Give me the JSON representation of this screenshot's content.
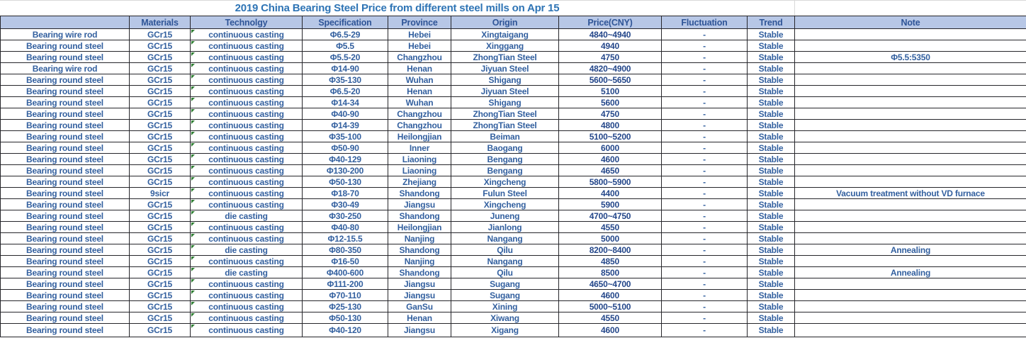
{
  "title": "2019 China Bearing Steel Price from different steel mills on Apr 15",
  "colors": {
    "header_bg": "#b7c7e6",
    "header_text": "#2f5597",
    "body_text": "#33609f",
    "price_text": "#24478a",
    "border": "#26262b",
    "title_text": "#2e74b5",
    "error_indicator_green": "#2e7d32"
  },
  "table": {
    "columns": [
      "",
      "Materials",
      "Technolgy",
      "Specification",
      "Province",
      "Origin",
      "Price(CNY)",
      "Fluctuation",
      "Trend",
      "Note"
    ],
    "column_keys": [
      "product",
      "materials",
      "technology",
      "specification",
      "province",
      "origin",
      "price",
      "fluctuation",
      "trend",
      "note"
    ],
    "rows": [
      [
        "Bearing wire rod",
        "GCr15",
        "continuous casting",
        "Φ6.5-29",
        "Hebei",
        "Xingtaigang",
        "4840~4940",
        "-",
        "Stable",
        ""
      ],
      [
        "Bearing round steel",
        "GCr15",
        "continuous casting",
        "Φ5.5",
        "Hebei",
        "Xinggang",
        "4940",
        "-",
        "Stable",
        ""
      ],
      [
        "Bearing round steel",
        "GCr15",
        "continuous casting",
        "Φ5.5-20",
        "Changzhou",
        "ZhongTian Steel",
        "4750",
        "-",
        "Stable",
        "Φ5.5:5350"
      ],
      [
        "Bearing wire rod",
        "GCr15",
        "continuous casting",
        "Φ14-90",
        "Henan",
        "Jiyuan Steel",
        "4820~4900",
        "-",
        "Stable",
        ""
      ],
      [
        "Bearing round steel",
        "GCr15",
        "continuous casting",
        "Φ35-130",
        "Wuhan",
        "Shigang",
        "5600~5650",
        "-",
        "Stable",
        ""
      ],
      [
        "Bearing round steel",
        "GCr15",
        "continuous casting",
        "Φ6.5-20",
        "Henan",
        "Jiyuan Steel",
        "5100",
        "-",
        "Stable",
        ""
      ],
      [
        "Bearing round steel",
        "GCr15",
        "continuous casting",
        "Φ14-34",
        "Wuhan",
        "Shigang",
        "5600",
        "-",
        "Stable",
        ""
      ],
      [
        "Bearing round steel",
        "GCr15",
        "continuous casting",
        "Φ40-90",
        "Changzhou",
        "ZhongTian Steel",
        "4750",
        "-",
        "Stable",
        ""
      ],
      [
        "Bearing round steel",
        "GCr15",
        "continuous casting",
        "Φ14-39",
        "Changzhou",
        "ZhongTian Steel",
        "4800",
        "-",
        "Stable",
        ""
      ],
      [
        "Bearing round steel",
        "GCr15",
        "continuous casting",
        "Φ35-100",
        "Heilongjian",
        "Beiman",
        "5100~5200",
        "-",
        "Stable",
        ""
      ],
      [
        "Bearing round steel",
        "GCr15",
        "continuous casting",
        "Φ50-90",
        "Inner",
        "Baogang",
        "6000",
        "-",
        "Stable",
        ""
      ],
      [
        "Bearing round steel",
        "GCr15",
        "continuous casting",
        "Φ40-129",
        "Liaoning",
        "Bengang",
        "4600",
        "-",
        "Stable",
        ""
      ],
      [
        "Bearing round steel",
        "GCr15",
        "continuous casting",
        "Φ130-200",
        "Liaoning",
        "Bengang",
        "4650",
        "-",
        "Stable",
        ""
      ],
      [
        "Bearing round steel",
        "GCr15",
        "continuous casting",
        "Φ50-130",
        "Zhejiang",
        "Xingcheng",
        "5800~5900",
        "-",
        "Stable",
        ""
      ],
      [
        "Bearing round steel",
        "9sicr",
        "continuous casting",
        "Φ18-70",
        "Shandong",
        "Fulun Steel",
        "4400",
        "-",
        "Stable",
        "Vacuum treatment without VD furnace"
      ],
      [
        "Bearing round steel",
        "GCr15",
        "continuous casting",
        "Φ30-49",
        "Jiangsu",
        "Xingcheng",
        "5900",
        "-",
        "Stable",
        ""
      ],
      [
        "Bearing round steel",
        "GCr15",
        "die casting",
        "Φ30-250",
        "Shandong",
        "Juneng",
        "4700~4750",
        "-",
        "Stable",
        ""
      ],
      [
        "Bearing round steel",
        "GCr15",
        "continuous casting",
        "Φ40-80",
        "Heilongjian",
        "Jianlong",
        "4550",
        "-",
        "Stable",
        ""
      ],
      [
        "Bearing round steel",
        "GCr15",
        "continuous casting",
        "Φ12-15.5",
        "Nanjing",
        "Nangang",
        "5000",
        "-",
        "Stable",
        ""
      ],
      [
        "Bearing round steel",
        "GCr15",
        "die casting",
        "Φ80-350",
        "Shandong",
        "Qilu",
        "8200~8400",
        "-",
        "Stable",
        "Annealing"
      ],
      [
        "Bearing round steel",
        "GCr15",
        "continuous casting",
        "Φ16-50",
        "Nanjing",
        "Nangang",
        "4850",
        "-",
        "Stable",
        ""
      ],
      [
        "Bearing round steel",
        "GCr15",
        "die casting",
        "Φ400-600",
        "Shandong",
        "Qilu",
        "8500",
        "-",
        "Stable",
        "Annealing"
      ],
      [
        "Bearing round steel",
        "GCr15",
        "continuous casting",
        "Φ111-200",
        "Jiangsu",
        "Sugang",
        "4650~4700",
        "-",
        "Stable",
        ""
      ],
      [
        "Bearing round steel",
        "GCr15",
        "continuous casting",
        "Φ70-110",
        "Jiangsu",
        "Sugang",
        "4600",
        "-",
        "Stable",
        ""
      ],
      [
        "Bearing round steel",
        "GCr15",
        "continuous casting",
        "Φ25-130",
        "GanSu",
        "Xining",
        "5000~5100",
        "-",
        "Stable",
        ""
      ],
      [
        "Bearing round steel",
        "GCr15",
        "continuous casting",
        "Φ50-130",
        "Henan",
        "Xiwang",
        "4550",
        "-",
        "Stable",
        ""
      ],
      [
        "Bearing round steel",
        "GCr15",
        "continuous casting",
        "Φ40-120",
        "Jiangsu",
        "Xigang",
        "4600",
        "-",
        "Stable",
        ""
      ]
    ]
  }
}
